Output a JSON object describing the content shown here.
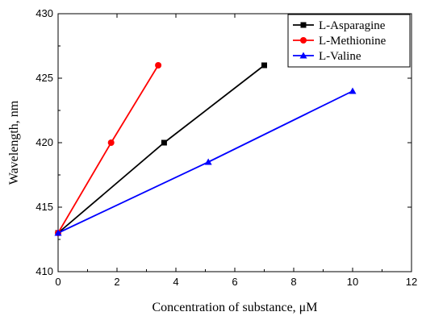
{
  "chart_data": {
    "type": "line",
    "xlabel": "Concentration of substance, μM",
    "ylabel": "Wavelength, nm",
    "xlim": [
      0,
      12
    ],
    "ylim": [
      410,
      430
    ],
    "xticks": [
      0,
      2,
      4,
      6,
      8,
      10,
      12
    ],
    "yticks": [
      410,
      415,
      420,
      425,
      430
    ],
    "grid": false,
    "legend_position": "top-right",
    "series": [
      {
        "name": "L-Asparagine",
        "color": "#000000",
        "marker": "square",
        "points": [
          [
            0,
            413
          ],
          [
            3.6,
            420
          ],
          [
            7.0,
            426
          ]
        ]
      },
      {
        "name": "L-Methionine",
        "color": "#ff0000",
        "marker": "circle",
        "points": [
          [
            0,
            413
          ],
          [
            1.8,
            420
          ],
          [
            3.4,
            426
          ]
        ]
      },
      {
        "name": "L-Valine",
        "color": "#0000ff",
        "marker": "triangle",
        "points": [
          [
            0,
            413
          ],
          [
            5.1,
            418.5
          ],
          [
            10.0,
            424
          ]
        ]
      }
    ]
  }
}
